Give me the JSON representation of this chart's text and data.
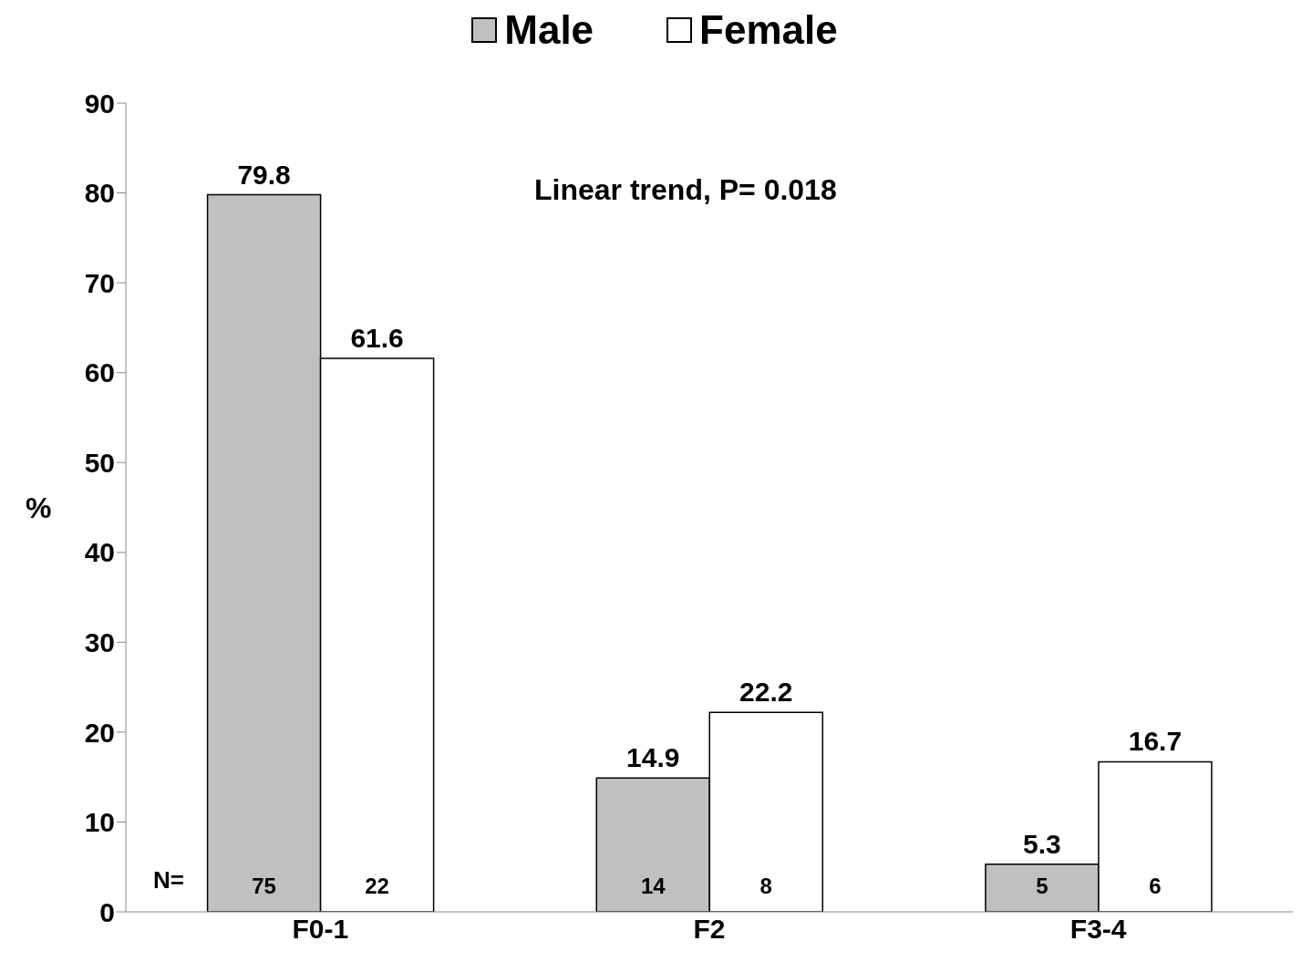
{
  "chart_data": {
    "type": "bar",
    "categories": [
      "F0-1",
      "F2",
      "F3-4"
    ],
    "ylabel": "%",
    "ylim": [
      0,
      90
    ],
    "yticks": [
      0,
      10,
      20,
      30,
      40,
      50,
      60,
      70,
      80,
      90
    ],
    "series": [
      {
        "name": "Male",
        "color": "#c0c0c0",
        "values": [
          79.8,
          14.9,
          5.3
        ]
      },
      {
        "name": "Female",
        "color": "#ffffff",
        "values": [
          61.6,
          22.2,
          16.7
        ]
      }
    ],
    "data_labels": true,
    "legend": "top",
    "annotations": [
      "Linear trend, P= 0.018",
      "N=",
      "75",
      "22",
      "14",
      "8",
      "5",
      "6"
    ]
  }
}
